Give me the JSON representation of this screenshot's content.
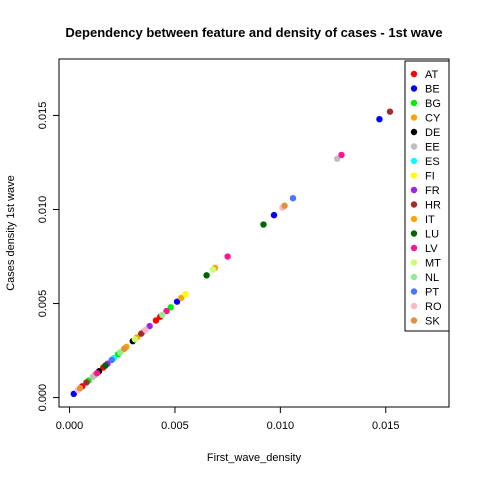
{
  "chart_data": {
    "type": "scatter",
    "title": "Dependency between feature and density of cases -  1st wave",
    "xlabel": "First_wave_density",
    "ylabel": "Cases density  1st wave",
    "xlim": [
      -0.0005,
      0.018
    ],
    "ylim": [
      -0.0005,
      0.018
    ],
    "xticks": [
      {
        "value": 0.0,
        "label": "0.000"
      },
      {
        "value": 0.005,
        "label": "0.005"
      },
      {
        "value": 0.01,
        "label": "0.010"
      },
      {
        "value": 0.015,
        "label": "0.015"
      }
    ],
    "yticks": [
      {
        "value": 0.0,
        "label": "0.000"
      },
      {
        "value": 0.005,
        "label": "0.005"
      },
      {
        "value": 0.01,
        "label": "0.010"
      },
      {
        "value": 0.015,
        "label": "0.015"
      }
    ],
    "grid": false,
    "legend_position": "top-right",
    "series": [
      {
        "name": "AT",
        "color": "#ff0000",
        "points": [
          [
            0.0006,
            0.0006
          ],
          [
            0.0016,
            0.0016
          ],
          [
            0.0041,
            0.0041
          ],
          [
            0.0043,
            0.0043
          ]
        ]
      },
      {
        "name": "BE",
        "color": "#0000ff",
        "points": [
          [
            0.0002,
            0.0002
          ],
          [
            0.0051,
            0.0051
          ],
          [
            0.0097,
            0.0097
          ],
          [
            0.0147,
            0.0148
          ]
        ]
      },
      {
        "name": "BG",
        "color": "#00ee00",
        "points": [
          [
            0.0009,
            0.0009
          ],
          [
            0.0023,
            0.0023
          ],
          [
            0.0048,
            0.0048
          ]
        ]
      },
      {
        "name": "CY",
        "color": "#ffa500",
        "points": [
          [
            0.0012,
            0.0012
          ],
          [
            0.0032,
            0.0032
          ],
          [
            0.0053,
            0.0053
          ]
        ]
      },
      {
        "name": "DE",
        "color": "#000000",
        "points": [
          [
            0.0014,
            0.0014
          ],
          [
            0.003,
            0.003
          ]
        ]
      },
      {
        "name": "EE",
        "color": "#bebebe",
        "points": [
          [
            0.0011,
            0.0011
          ],
          [
            0.0035,
            0.0035
          ],
          [
            0.0127,
            0.0127
          ]
        ]
      },
      {
        "name": "ES",
        "color": "#00ffff",
        "points": [
          [
            0.0021,
            0.0021
          ]
        ]
      },
      {
        "name": "FI",
        "color": "#ffff00",
        "points": [
          [
            0.0025,
            0.0025
          ],
          [
            0.0055,
            0.0055
          ]
        ]
      },
      {
        "name": "FR",
        "color": "#a020f0",
        "points": [
          [
            0.0018,
            0.0018
          ],
          [
            0.0038,
            0.0038
          ]
        ]
      },
      {
        "name": "HR",
        "color": "#a52a2a",
        "points": [
          [
            0.0008,
            0.0008
          ],
          [
            0.0034,
            0.0034
          ],
          [
            0.0152,
            0.0152
          ]
        ]
      },
      {
        "name": "IT",
        "color": "#ffa500",
        "points": [
          [
            0.0027,
            0.0027
          ],
          [
            0.0069,
            0.0069
          ]
        ]
      },
      {
        "name": "LU",
        "color": "#006400",
        "points": [
          [
            0.0017,
            0.0017
          ],
          [
            0.0065,
            0.0065
          ],
          [
            0.0092,
            0.0092
          ]
        ]
      },
      {
        "name": "LV",
        "color": "#ff1493",
        "points": [
          [
            0.0013,
            0.0013
          ],
          [
            0.0046,
            0.0046
          ],
          [
            0.0075,
            0.0075
          ],
          [
            0.0129,
            0.0129
          ]
        ]
      },
      {
        "name": "MT",
        "color": "#caff70",
        "points": [
          [
            0.0031,
            0.0031
          ],
          [
            0.0068,
            0.0068
          ]
        ]
      },
      {
        "name": "NL",
        "color": "#90ee90",
        "points": [
          [
            0.0024,
            0.0024
          ],
          [
            0.0044,
            0.0044
          ]
        ]
      },
      {
        "name": "PT",
        "color": "#4876ff",
        "points": [
          [
            0.002,
            0.002
          ],
          [
            0.0106,
            0.0106
          ]
        ]
      },
      {
        "name": "RO",
        "color": "#ffb6c1",
        "points": [
          [
            0.0004,
            0.0004
          ],
          [
            0.0036,
            0.0036
          ],
          [
            0.0101,
            0.0101
          ]
        ]
      },
      {
        "name": "SK",
        "color": "#e09040",
        "points": [
          [
            0.0005,
            0.0005
          ],
          [
            0.0026,
            0.0026
          ],
          [
            0.0102,
            0.0102
          ]
        ]
      }
    ]
  }
}
